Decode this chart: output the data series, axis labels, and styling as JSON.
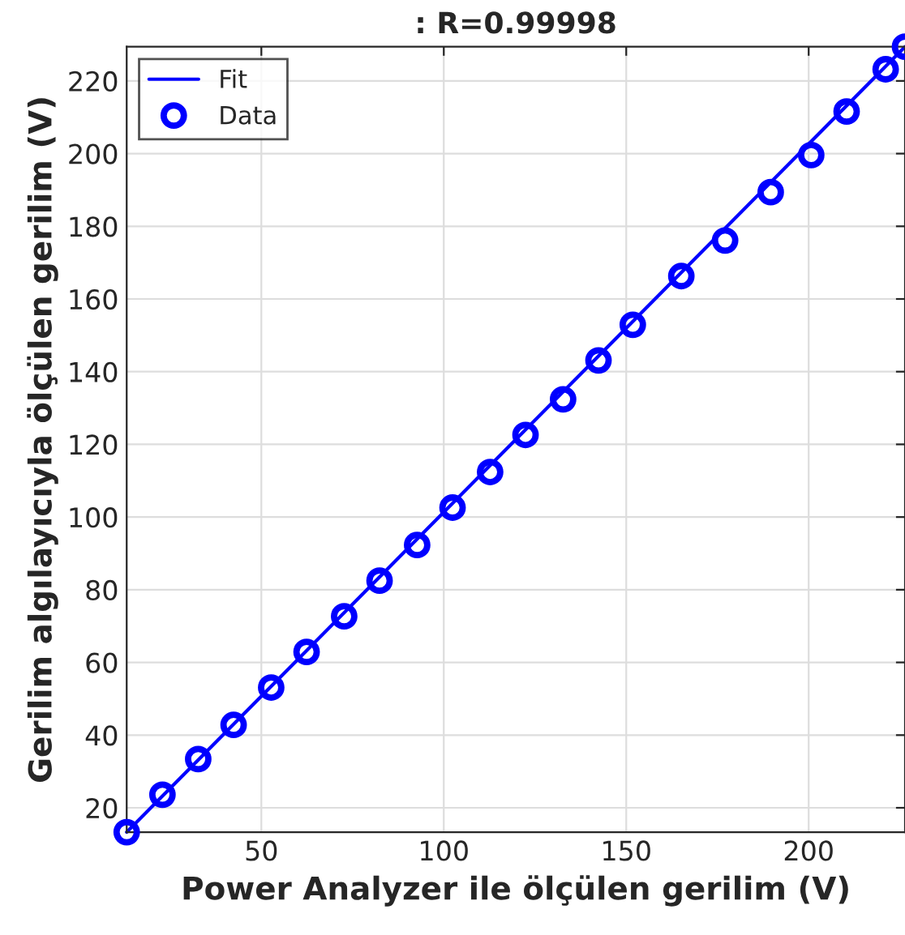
{
  "chart_data": {
    "type": "scatter",
    "title": ": R=0.99998",
    "xlabel": "Power Analyzer ile ölçülen gerilim (V)",
    "ylabel": "Gerilim algılayıcıyla ölçülen gerilim (V)",
    "xlim": [
      13.1,
      226.4
    ],
    "ylim": [
      13.3,
      229.4
    ],
    "xticks": [
      50,
      100,
      150,
      200
    ],
    "yticks": [
      20,
      40,
      60,
      80,
      100,
      120,
      140,
      160,
      180,
      200,
      220
    ],
    "grid": true,
    "legend": "top left",
    "series": [
      {
        "name": "Fit",
        "type": "line",
        "color": "#0000ff",
        "marker": "none",
        "line_style": "solid",
        "x": [
          13.1,
          226.4
        ],
        "values": [
          13.3,
          229.4
        ]
      },
      {
        "name": "Data",
        "color": "#0000ff",
        "marker": "circle",
        "x": [
          13.1,
          22.9,
          32.7,
          42.4,
          52.7,
          62.4,
          72.7,
          82.4,
          92.7,
          102.4,
          112.7,
          122.4,
          132.7,
          142.4,
          151.8,
          165.1,
          177.1,
          189.6,
          200.7,
          210.4,
          221.1,
          226.4
        ],
        "values": [
          13.3,
          23.6,
          33.4,
          42.8,
          53.1,
          62.9,
          72.7,
          82.5,
          92.3,
          102.6,
          112.4,
          122.6,
          132.4,
          143.1,
          152.9,
          166.3,
          176.1,
          189.4,
          199.6,
          211.6,
          223.2,
          229.4
        ]
      }
    ]
  }
}
